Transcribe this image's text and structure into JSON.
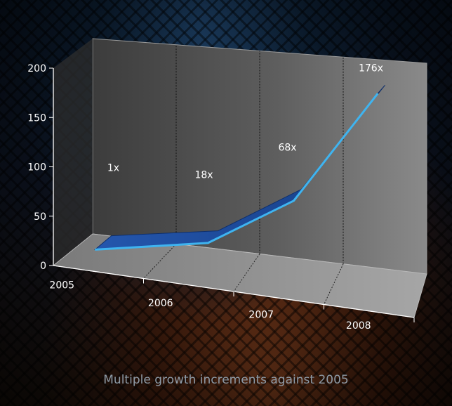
{
  "chart_data": {
    "type": "area",
    "categories": [
      "2005",
      "2006",
      "2007",
      "2008"
    ],
    "series": [
      {
        "values": [
          1,
          18,
          68,
          176
        ]
      }
    ],
    "data_labels": [
      "1x",
      "18x",
      "68x",
      "176x"
    ],
    "ylim": [
      0,
      200
    ],
    "yticks": [
      "0",
      "50",
      "100",
      "150",
      "200"
    ],
    "grid": "vertical dotted",
    "colors": {
      "line": "#3fb4f0",
      "ribbon": "#1d4e9c",
      "wall": "#6e6e6e",
      "floor": "#9a9a9a"
    }
  },
  "caption": "Multiple growth increments against 2005"
}
